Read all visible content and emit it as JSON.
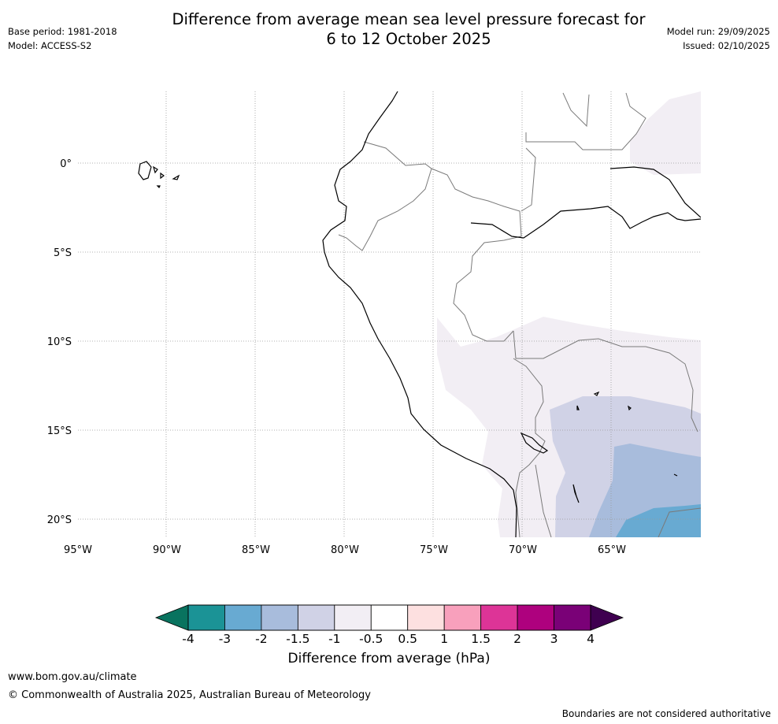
{
  "header": {
    "title_line1": "Difference from average mean sea level pressure forecast for",
    "title_line2": "6 to 12 October 2025",
    "base_period": "Base period: 1981-2018",
    "model": "Model: ACCESS-S2",
    "model_run": "Model run: 29/09/2025",
    "issued": "Issued: 02/10/2025"
  },
  "map": {
    "lat_labels": [
      "0°",
      "5°S",
      "10°S",
      "15°S",
      "20°S"
    ],
    "lon_labels": [
      "95°W",
      "90°W",
      "85°W",
      "80°W",
      "75°W",
      "70°W",
      "65°W"
    ],
    "region": "South America – Peru / Ecuador / Bolivia",
    "anomaly_colors": {
      "minus_0_5_to_minus_1": "#f2eef4",
      "minus_1_to_minus_1_5": "#d0d2e6",
      "minus_1_5_to_minus_2": "#a8bcdc",
      "minus_2_to_minus_3": "#68aad2"
    }
  },
  "colorbar": {
    "tick_labels": [
      "-4",
      "-3",
      "-2",
      "-1.5",
      "-1",
      "-0.5",
      "0.5",
      "1",
      "1.5",
      "2",
      "3",
      "4"
    ],
    "low_extend_color": "#09735f",
    "high_extend_color": "#3f0050",
    "colors": [
      "#1b9396",
      "#68aad2",
      "#a8bcdc",
      "#d0d2e6",
      "#f2eef4",
      "#ffffff",
      "#fde0e0",
      "#f8a0bc",
      "#dd3497",
      "#ae017e",
      "#7a0177"
    ],
    "label": "Difference from average (hPa)"
  },
  "footer": {
    "url": "www.bom.gov.au/climate",
    "copyright": "© Commonwealth of Australia 2025, Australian Bureau of Meteorology",
    "note": "Boundaries are not considered authoritative"
  }
}
